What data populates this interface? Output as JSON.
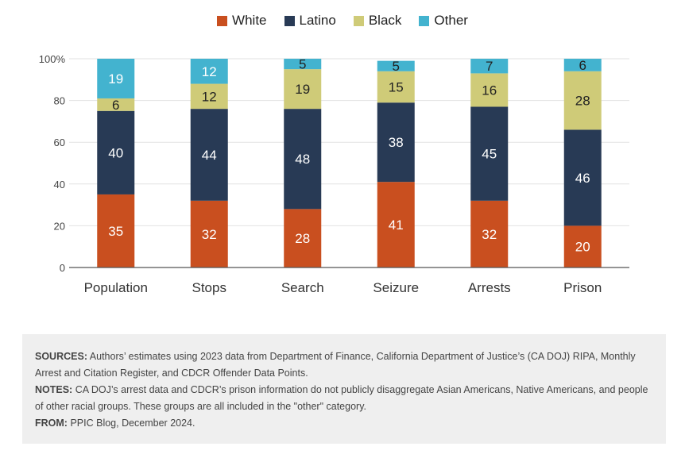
{
  "chart_data": {
    "type": "bar",
    "stacked": true,
    "categories": [
      "Population",
      "Stops",
      "Search",
      "Seizure",
      "Arrests",
      "Prison"
    ],
    "series": [
      {
        "name": "White",
        "color": "#c94f1f",
        "values": [
          35,
          32,
          28,
          41,
          32,
          20
        ]
      },
      {
        "name": "Latino",
        "color": "#283a55",
        "values": [
          40,
          44,
          48,
          38,
          45,
          46
        ]
      },
      {
        "name": "Black",
        "color": "#cfcb78",
        "values": [
          6,
          12,
          19,
          15,
          16,
          28
        ]
      },
      {
        "name": "Other",
        "color": "#43b3cf",
        "values": [
          19,
          12,
          5,
          5,
          7,
          6
        ]
      }
    ],
    "yticks": [
      "0",
      "20",
      "40",
      "60",
      "80",
      "100%"
    ],
    "ylim": [
      0,
      100
    ],
    "grid": true,
    "legend": "top-center"
  },
  "notes": {
    "sources_label": "SOURCES:",
    "sources_text": "Authors’ estimates using 2023 data from Department of Finance, California Department of Justice’s (CA DOJ) RIPA, Monthly Arrest and Citation Register, and CDCR Offender Data Points.",
    "notes_label": "NOTES:",
    "notes_text": "CA DOJ’s arrest data and CDCR’s prison information do not publicly disaggregate Asian Americans, Native Americans, and people of other racial groups. These groups are all included in the \"other\" category.",
    "from_label": "FROM:",
    "from_text": "PPIC Blog, December 2024."
  }
}
